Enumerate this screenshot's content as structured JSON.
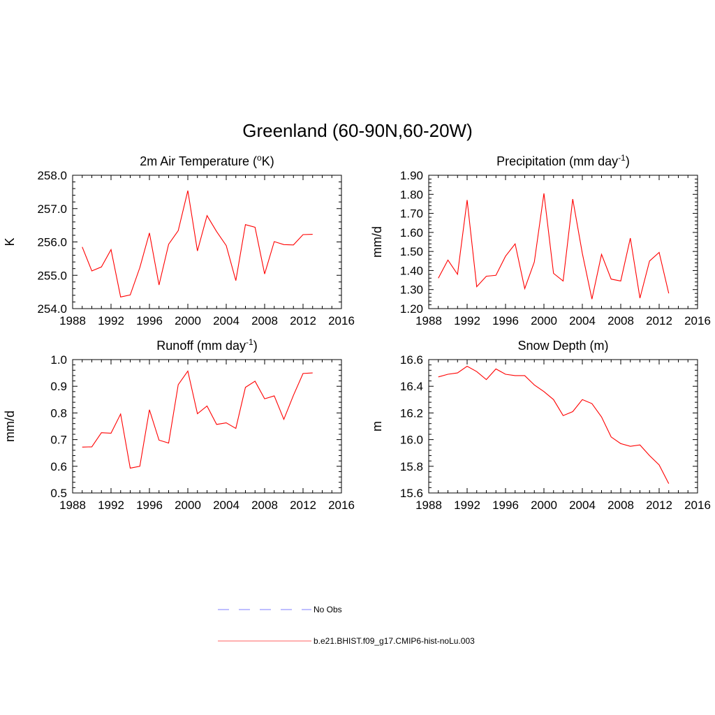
{
  "figure": {
    "title": "Greenland (60-90N,60-20W)"
  },
  "colors": {
    "model_line": "#ff0000",
    "obs_line": "#9999ff",
    "axis": "#000000",
    "background": "#ffffff"
  },
  "legend": {
    "entries": [
      {
        "label": "No Obs",
        "style": "dashed",
        "color": "#9999ff"
      },
      {
        "label": "b.e21.BHIST.f09_g17.CMIP6-hist-noLu.003",
        "style": "solid",
        "color": "#ff8080"
      }
    ]
  },
  "chart_data": [
    {
      "type": "line",
      "title": "2m Air Temperature (oK)",
      "title_parts": {
        "before": "2m Air Temperature (",
        "sup": "o",
        "after": "K)"
      },
      "xlabel": "",
      "ylabel": "K",
      "xlim": [
        1988,
        2016
      ],
      "ylim": [
        254.0,
        258.0
      ],
      "xticks": [
        "1988",
        "1992",
        "1996",
        "2000",
        "2004",
        "2008",
        "2012",
        "2016"
      ],
      "yticks": [
        "254.0",
        "255.0",
        "256.0",
        "257.0",
        "258.0"
      ],
      "grid": false,
      "series": [
        {
          "name": "b.e21.BHIST.f09_g17.CMIP6-hist-noLu.003",
          "x": [
            1989,
            1990,
            1991,
            1992,
            1993,
            1994,
            1995,
            1996,
            1997,
            1998,
            1999,
            2000,
            2001,
            2002,
            2003,
            2004,
            2005,
            2006,
            2007,
            2008,
            2009,
            2010,
            2011,
            2012,
            2013
          ],
          "y": [
            255.85,
            255.13,
            255.25,
            255.77,
            254.35,
            254.41,
            255.23,
            256.27,
            254.71,
            255.93,
            256.34,
            257.54,
            255.73,
            256.79,
            256.31,
            255.89,
            254.84,
            256.52,
            256.44,
            255.04,
            256.01,
            255.92,
            255.91,
            256.22,
            256.23
          ]
        }
      ]
    },
    {
      "type": "line",
      "title": "Precipitation (mm day-1)",
      "title_parts": {
        "before": "Precipitation (mm day",
        "sup": "-1",
        "after": ")"
      },
      "xlabel": "",
      "ylabel": "mm/d",
      "xlim": [
        1988,
        2016
      ],
      "ylim": [
        1.2,
        1.9
      ],
      "xticks": [
        "1988",
        "1992",
        "1996",
        "2000",
        "2004",
        "2008",
        "2012",
        "2016"
      ],
      "yticks": [
        "1.20",
        "1.30",
        "1.40",
        "1.50",
        "1.60",
        "1.70",
        "1.80",
        "1.90"
      ],
      "grid": false,
      "series": [
        {
          "name": "b.e21.BHIST.f09_g17.CMIP6-hist-noLu.003",
          "x": [
            1989,
            1990,
            1991,
            1992,
            1993,
            1994,
            1995,
            1996,
            1997,
            1998,
            1999,
            2000,
            2001,
            2002,
            2003,
            2004,
            2005,
            2006,
            2007,
            2008,
            2009,
            2010,
            2011,
            2012,
            2013
          ],
          "y": [
            1.36,
            1.455,
            1.38,
            1.77,
            1.315,
            1.37,
            1.375,
            1.475,
            1.54,
            1.305,
            1.445,
            1.805,
            1.385,
            1.345,
            1.775,
            1.49,
            1.25,
            1.485,
            1.355,
            1.345,
            1.57,
            1.255,
            1.45,
            1.495,
            1.28
          ]
        }
      ]
    },
    {
      "type": "line",
      "title": "Runoff (mm day-1)",
      "title_parts": {
        "before": "Runoff (mm day",
        "sup": "-1",
        "after": ")"
      },
      "xlabel": "",
      "ylabel": "mm/d",
      "xlim": [
        1988,
        2016
      ],
      "ylim": [
        0.5,
        1.0
      ],
      "xticks": [
        "1988",
        "1992",
        "1996",
        "2000",
        "2004",
        "2008",
        "2012",
        "2016"
      ],
      "yticks": [
        "0.5",
        "0.6",
        "0.7",
        "0.8",
        "0.9",
        "1.0"
      ],
      "grid": false,
      "series": [
        {
          "name": "b.e21.BHIST.f09_g17.CMIP6-hist-noLu.003",
          "x": [
            1989,
            1990,
            1991,
            1992,
            1993,
            1994,
            1995,
            1996,
            1997,
            1998,
            1999,
            2000,
            2001,
            2002,
            2003,
            2004,
            2005,
            2006,
            2007,
            2008,
            2009,
            2010,
            2011,
            2012,
            2013
          ],
          "y": [
            0.672,
            0.673,
            0.726,
            0.724,
            0.796,
            0.593,
            0.6,
            0.812,
            0.698,
            0.687,
            0.906,
            0.957,
            0.797,
            0.826,
            0.757,
            0.763,
            0.742,
            0.896,
            0.919,
            0.853,
            0.864,
            0.776,
            0.866,
            0.948,
            0.95
          ]
        }
      ]
    },
    {
      "type": "line",
      "title": "Snow Depth (m)",
      "title_parts": {
        "before": "Snow Depth (m)",
        "sup": "",
        "after": ""
      },
      "xlabel": "",
      "ylabel": "m",
      "xlim": [
        1988,
        2016
      ],
      "ylim": [
        15.6,
        16.6
      ],
      "xticks": [
        "1988",
        "1992",
        "1996",
        "2000",
        "2004",
        "2008",
        "2012",
        "2016"
      ],
      "yticks": [
        "15.6",
        "15.8",
        "16.0",
        "16.2",
        "16.4",
        "16.6"
      ],
      "grid": false,
      "series": [
        {
          "name": "b.e21.BHIST.f09_g17.CMIP6-hist-noLu.003",
          "x": [
            1989,
            1990,
            1991,
            1992,
            1993,
            1994,
            1995,
            1996,
            1997,
            1998,
            1999,
            2000,
            2001,
            2002,
            2003,
            2004,
            2005,
            2006,
            2007,
            2008,
            2009,
            2010,
            2011,
            2012,
            2013
          ],
          "y": [
            16.47,
            16.49,
            16.5,
            16.55,
            16.51,
            16.45,
            16.53,
            16.49,
            16.48,
            16.48,
            16.41,
            16.36,
            16.3,
            16.18,
            16.21,
            16.3,
            16.27,
            16.17,
            16.02,
            15.97,
            15.95,
            15.96,
            15.88,
            15.81,
            15.67
          ]
        }
      ]
    }
  ]
}
